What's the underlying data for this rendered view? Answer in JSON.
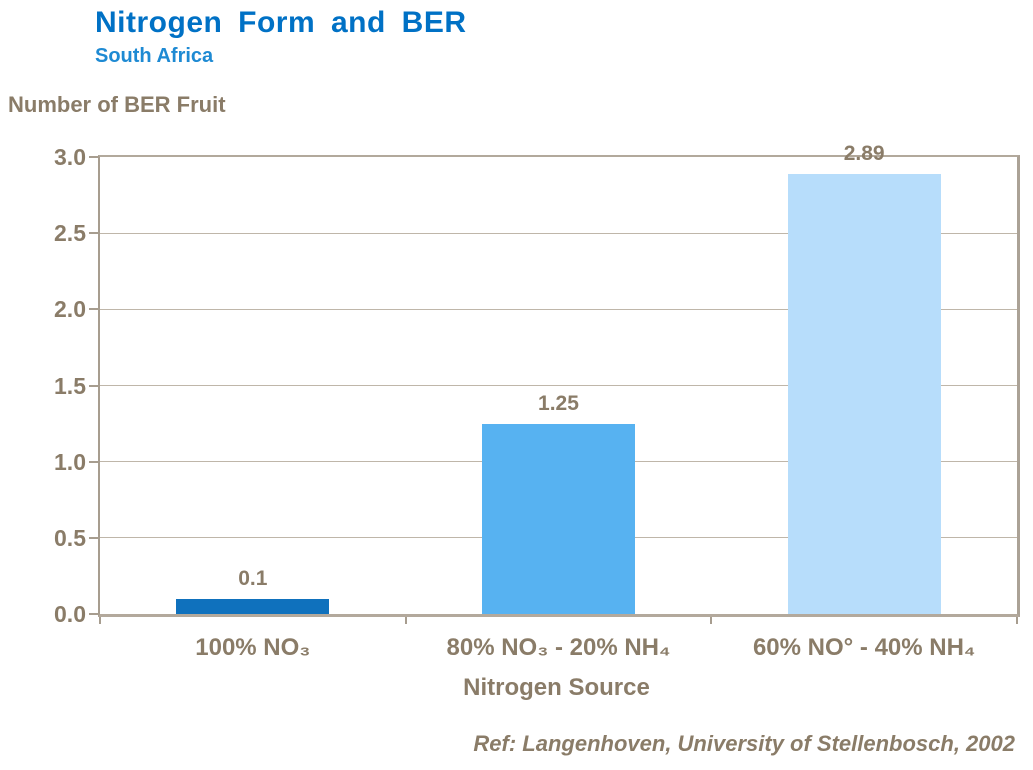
{
  "header": {
    "title": "Nitrogen Form and BER",
    "subtitle": "South Africa",
    "title_color": "#0071C5",
    "subtitle_color": "#1E8AD3"
  },
  "chart_data": {
    "type": "bar",
    "title": "Nitrogen Form and BER",
    "subtitle": "South Africa",
    "ylabel": "Number of BER Fruit",
    "xlabel": "Nitrogen Source",
    "categories": [
      "100% NO₃",
      "80% NO₃ - 20% NH₄",
      "60% NO° - 40% NH₄"
    ],
    "values": [
      0.1,
      1.25,
      2.89
    ],
    "value_labels": [
      "0.1",
      "1.25",
      "2.89"
    ],
    "bar_colors": [
      "#0F71BD",
      "#57B2F1",
      "#B7DDFB"
    ],
    "ylim": [
      0,
      3.0
    ],
    "ytick_labels": [
      "3.0",
      "2.5",
      "2.0",
      "1.5",
      "1.0",
      "0.5",
      "0.0"
    ],
    "grid": true,
    "legend": "none",
    "text_color": "#8A7C68",
    "gridline_color": "#BFB6A9",
    "axis_color": "#A79D8F"
  },
  "footer": {
    "reference": "Ref: Langenhoven, University of Stellenbosch, 2002"
  }
}
